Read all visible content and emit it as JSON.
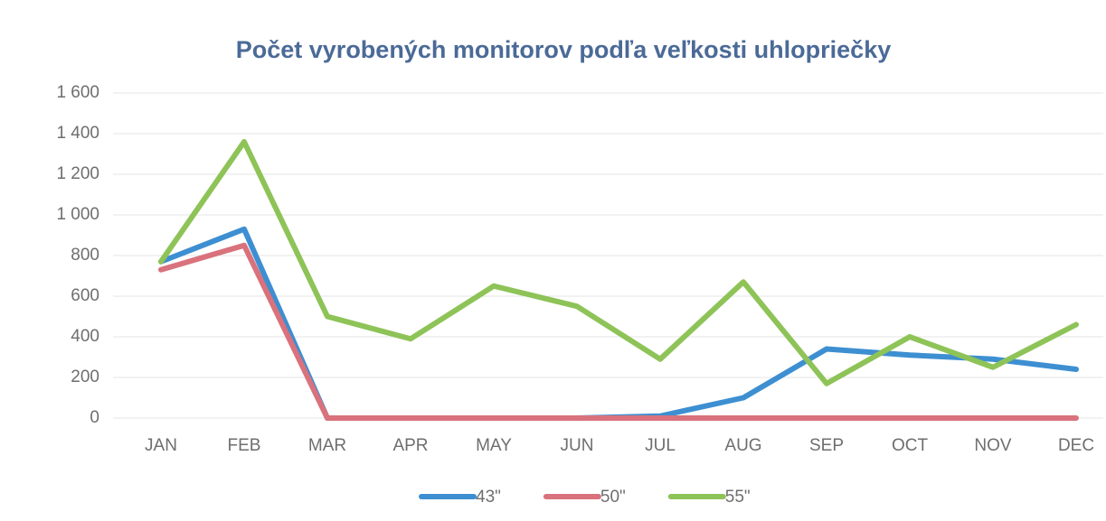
{
  "chart_data": {
    "type": "line",
    "title": "Počet vyrobených monitorov podľa veľkosti uhlopriečky",
    "categories": [
      "JAN",
      "FEB",
      "MAR",
      "APR",
      "MAY",
      "JUN",
      "JUL",
      "AUG",
      "SEP",
      "OCT",
      "NOV",
      "DEC"
    ],
    "series": [
      {
        "name": "43\"",
        "color": "#3d8fd1",
        "values": [
          770,
          930,
          0,
          0,
          0,
          0,
          10,
          100,
          340,
          310,
          290,
          240
        ]
      },
      {
        "name": "50\"",
        "color": "#d9727c",
        "values": [
          730,
          850,
          0,
          0,
          0,
          0,
          0,
          0,
          0,
          0,
          0,
          0
        ]
      },
      {
        "name": "55\"",
        "color": "#8ec358",
        "values": [
          770,
          1360,
          500,
          390,
          650,
          550,
          290,
          670,
          170,
          400,
          250,
          460
        ]
      }
    ],
    "ylim": [
      0,
      1600
    ],
    "yticks": [
      0,
      200,
      400,
      600,
      800,
      {
        "value": 1000,
        "label": "1 000"
      },
      {
        "value": 1200,
        "label": "1 200"
      },
      {
        "value": 1400,
        "label": "1 400"
      },
      {
        "value": 1600,
        "label": "1 600"
      }
    ],
    "grid": true,
    "legend": "bottom"
  }
}
